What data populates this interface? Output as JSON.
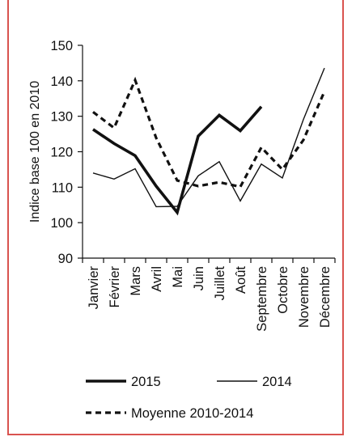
{
  "chart_data": {
    "type": "line",
    "ylabel": "Indice base 100 en 2010",
    "ylim": [
      90,
      150
    ],
    "yticks": [
      90,
      100,
      110,
      120,
      130,
      140,
      150
    ],
    "categories": [
      "Janvier",
      "Février",
      "Mars",
      "Avril",
      "Mai",
      "Juin",
      "Juillet",
      "Août",
      "Septembre",
      "Octobre",
      "Novembre",
      "Décembre"
    ],
    "series": [
      {
        "name": "2015",
        "style": "thick-solid",
        "color": "#111111",
        "values": [
          126.3,
          122.3,
          118.9,
          110.3,
          102.9,
          124.4,
          130.3,
          125.9,
          132.7,
          null,
          null,
          null
        ]
      },
      {
        "name": "2014",
        "style": "thin-solid",
        "color": "#111111",
        "values": [
          114.0,
          112.3,
          115.2,
          104.5,
          104.6,
          113.2,
          117.2,
          106.1,
          116.5,
          112.6,
          129.1,
          143.6
        ]
      },
      {
        "name": "Moyenne 2010-2014",
        "style": "dashed",
        "color": "#111111",
        "values": [
          131.2,
          126.7,
          140.2,
          123.9,
          111.9,
          110.3,
          111.4,
          110.1,
          121.2,
          115.0,
          123.3,
          137.0
        ]
      }
    ],
    "grid": false,
    "legend_position": "bottom"
  },
  "colors": {
    "frame_border": "#d9534f",
    "ink": "#111111"
  }
}
